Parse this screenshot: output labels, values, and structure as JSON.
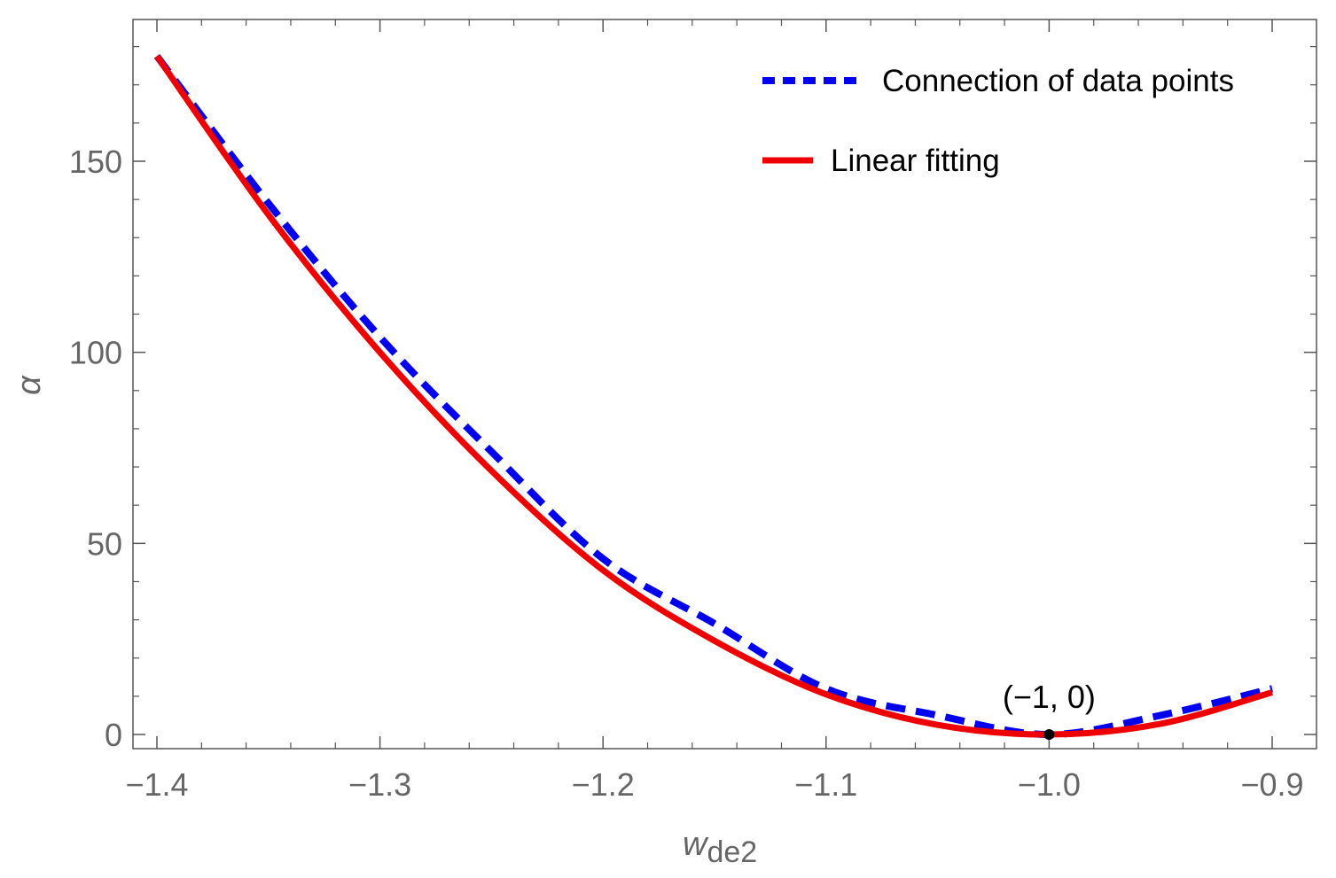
{
  "chart_data": {
    "type": "line",
    "title": "",
    "xlabel": "w",
    "xlabel_sub": "de2",
    "ylabel": "α",
    "xlim": [
      -1.4,
      -0.9
    ],
    "ylim": [
      -4,
      188
    ],
    "x_ticks": [
      -1.4,
      -1.3,
      -1.2,
      -1.1,
      -1.0,
      -0.9
    ],
    "x_tick_labels": [
      "−1.4",
      "−1.3",
      "−1.2",
      "−1.1",
      "−1.0",
      "−0.9"
    ],
    "y_ticks": [
      0,
      50,
      100,
      150
    ],
    "y_tick_labels": [
      "0",
      "50",
      "100",
      "150"
    ],
    "grid": false,
    "legend_position": "top-right",
    "series": [
      {
        "name": "Connection of data points",
        "color": "#0000ee",
        "style": "dashed",
        "x": [
          -1.4,
          -1.35,
          -1.3,
          -1.25,
          -1.2,
          -1.15,
          -1.1,
          -1.05,
          -1.0,
          -0.95,
          -0.9
        ],
        "y": [
          177.5,
          139,
          104,
          74,
          46,
          29,
          12,
          5,
          0,
          5,
          12
        ]
      },
      {
        "name": "Linear fitting",
        "color": "#ee0000",
        "style": "solid",
        "x": [
          -1.4,
          -1.35,
          -1.3,
          -1.25,
          -1.2,
          -1.15,
          -1.1,
          -1.05,
          -1.0,
          -0.95,
          -0.9
        ],
        "y": [
          177.5,
          136,
          100,
          69,
          43,
          24.5,
          10.5,
          2.5,
          0,
          2.8,
          11
        ]
      }
    ],
    "annotations": [
      {
        "text": "(−1, 0)",
        "x": -1.0,
        "y": 0
      }
    ]
  }
}
